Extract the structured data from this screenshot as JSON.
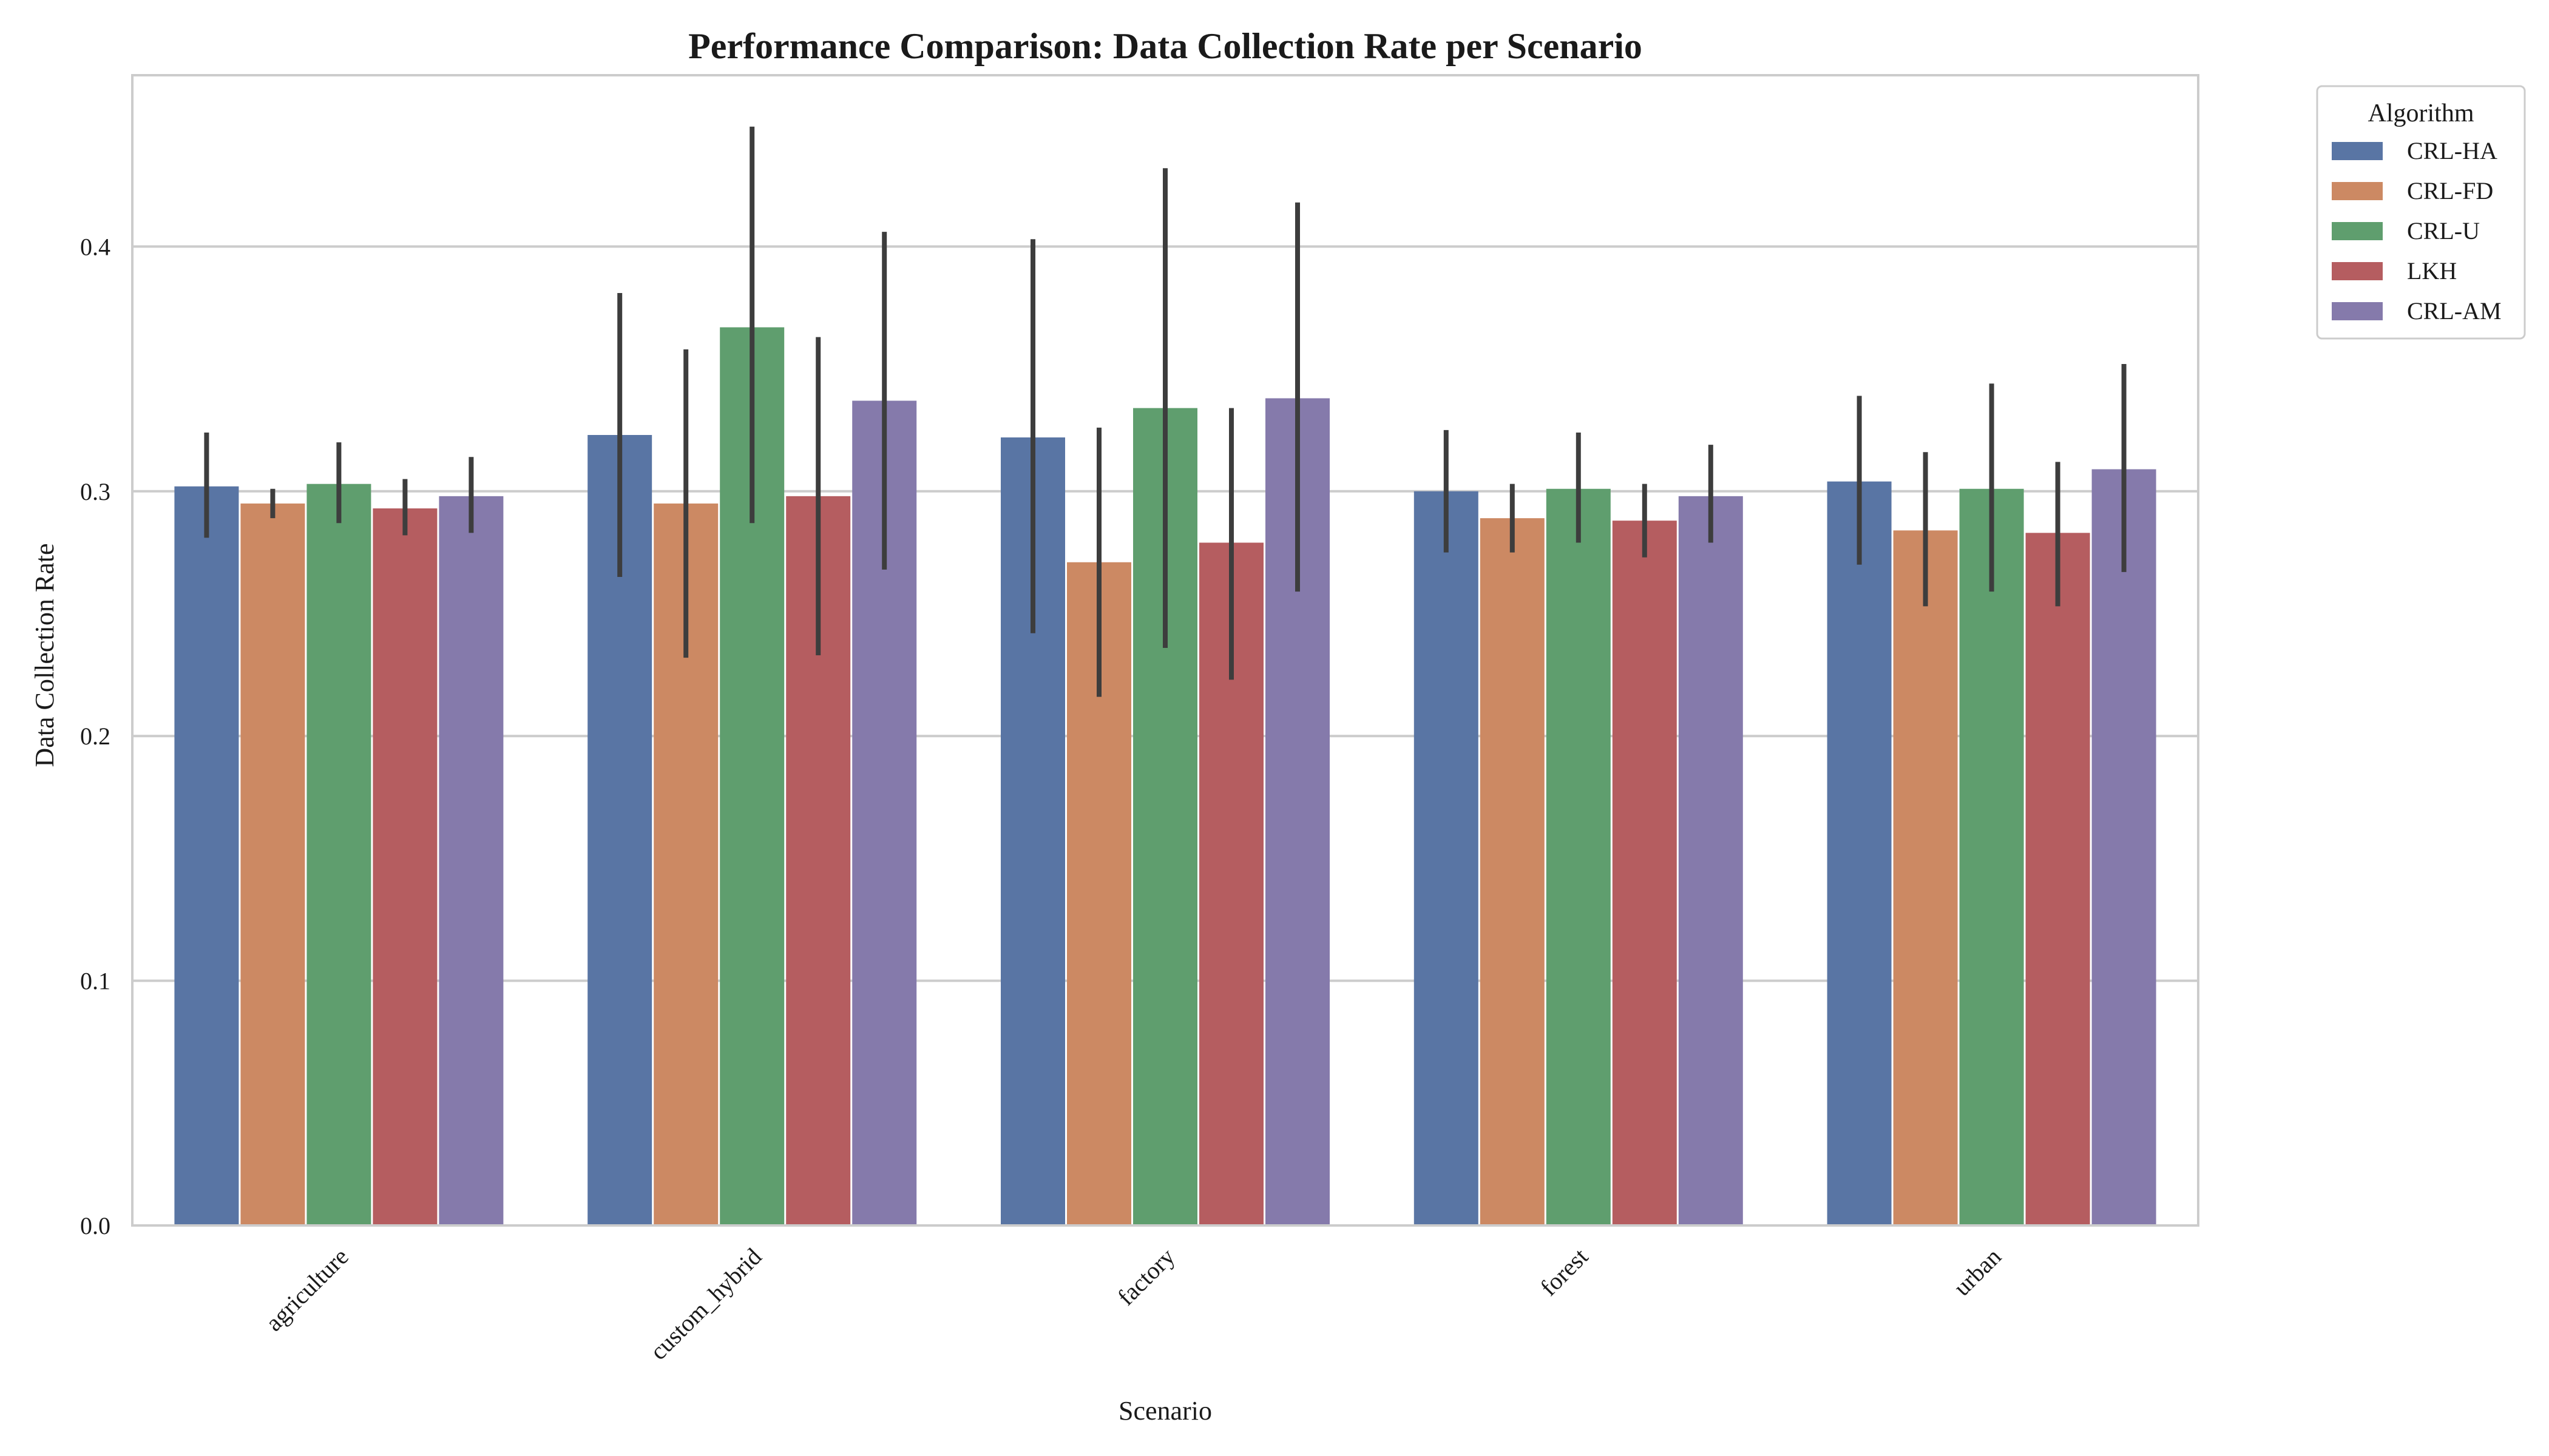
{
  "chart_data": {
    "type": "bar",
    "title": "Performance Comparison: Data Collection Rate per Scenario",
    "xlabel": "Scenario",
    "ylabel": "Data Collection Rate",
    "categories": [
      "agriculture",
      "custom_hybrid",
      "factory",
      "forest",
      "urban"
    ],
    "ylim": [
      0,
      0.47
    ],
    "yticks": [
      "0.0",
      "0.1",
      "0.2",
      "0.3",
      "0.4"
    ],
    "grid": "horizontal",
    "legend": {
      "title": "Algorithm",
      "placement": "outside-top-right"
    },
    "series": [
      {
        "name": "CRL-HA",
        "color": "#5975a4",
        "values": [
          0.302,
          0.323,
          0.322,
          0.3,
          0.304
        ],
        "err_low": [
          0.281,
          0.265,
          0.242,
          0.275,
          0.27
        ],
        "err_high": [
          0.324,
          0.381,
          0.403,
          0.325,
          0.339
        ]
      },
      {
        "name": "CRL-FD",
        "color": "#cc8963",
        "values": [
          0.295,
          0.295,
          0.271,
          0.289,
          0.284
        ],
        "err_low": [
          0.289,
          0.232,
          0.216,
          0.275,
          0.253
        ],
        "err_high": [
          0.301,
          0.358,
          0.326,
          0.303,
          0.316
        ]
      },
      {
        "name": "CRL-U",
        "color": "#5f9e6e",
        "values": [
          0.303,
          0.367,
          0.334,
          0.301,
          0.301
        ],
        "err_low": [
          0.287,
          0.287,
          0.236,
          0.279,
          0.259
        ],
        "err_high": [
          0.32,
          0.449,
          0.432,
          0.324,
          0.344
        ]
      },
      {
        "name": "LKH",
        "color": "#b55d60",
        "values": [
          0.293,
          0.298,
          0.279,
          0.288,
          0.283
        ],
        "err_low": [
          0.282,
          0.233,
          0.223,
          0.273,
          0.253
        ],
        "err_high": [
          0.305,
          0.363,
          0.334,
          0.303,
          0.312
        ]
      },
      {
        "name": "CRL-AM",
        "color": "#857aab",
        "values": [
          0.298,
          0.337,
          0.338,
          0.298,
          0.309
        ],
        "err_low": [
          0.283,
          0.268,
          0.259,
          0.279,
          0.267
        ],
        "err_high": [
          0.314,
          0.406,
          0.418,
          0.319,
          0.352
        ]
      }
    ]
  }
}
